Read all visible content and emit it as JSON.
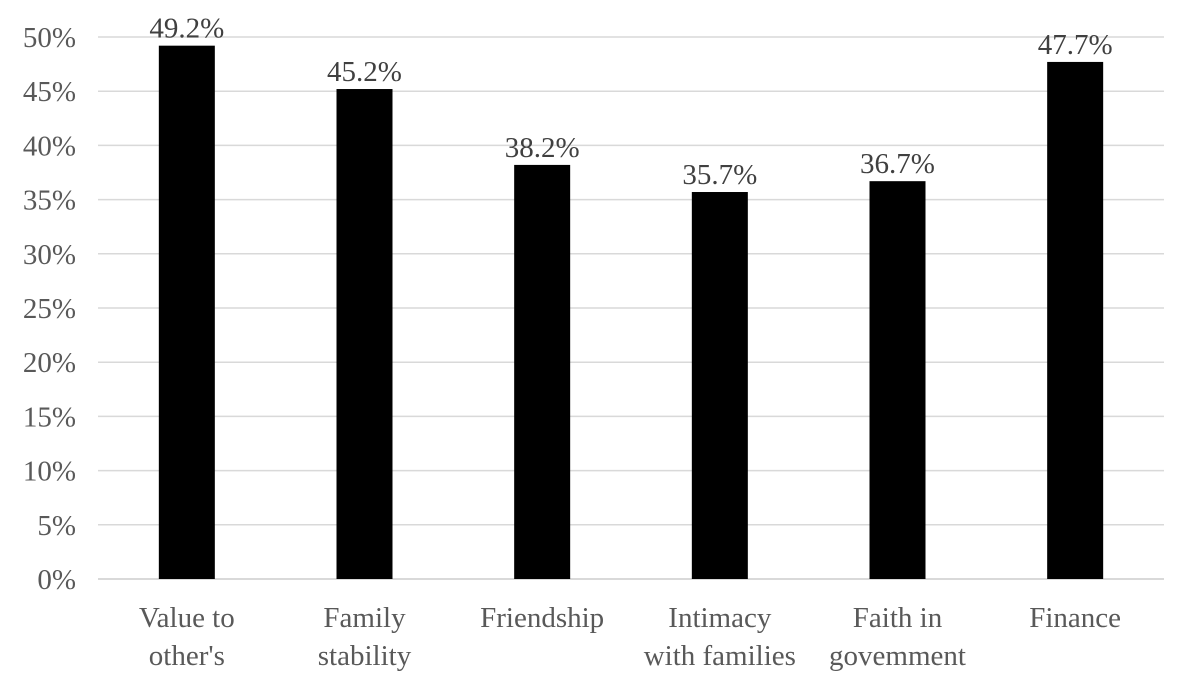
{
  "chart_data": {
    "type": "bar",
    "categories": [
      [
        "Value to",
        "other's"
      ],
      [
        "Family",
        "stability"
      ],
      [
        "Friendship"
      ],
      [
        "Intimacy",
        "with families"
      ],
      [
        "Faith in",
        "govemment"
      ],
      [
        "Finance"
      ]
    ],
    "values": [
      49.2,
      45.2,
      38.2,
      35.7,
      36.7,
      47.7
    ],
    "data_labels": [
      "49.2%",
      "45.2%",
      "38.2%",
      "35.7%",
      "36.7%",
      "47.7%"
    ],
    "yticks": [
      "0%",
      "5%",
      "10%",
      "15%",
      "20%",
      "25%",
      "30%",
      "35%",
      "40%",
      "45%",
      "50%"
    ],
    "ylim": [
      0,
      50
    ],
    "ystep": 5,
    "grid": true,
    "legend": "none",
    "colors": {
      "bar": "#000000",
      "grid": "#d9d9d9",
      "axis": "#d9d9d9",
      "tick_text": "#595959",
      "label_text": "#404040"
    }
  }
}
